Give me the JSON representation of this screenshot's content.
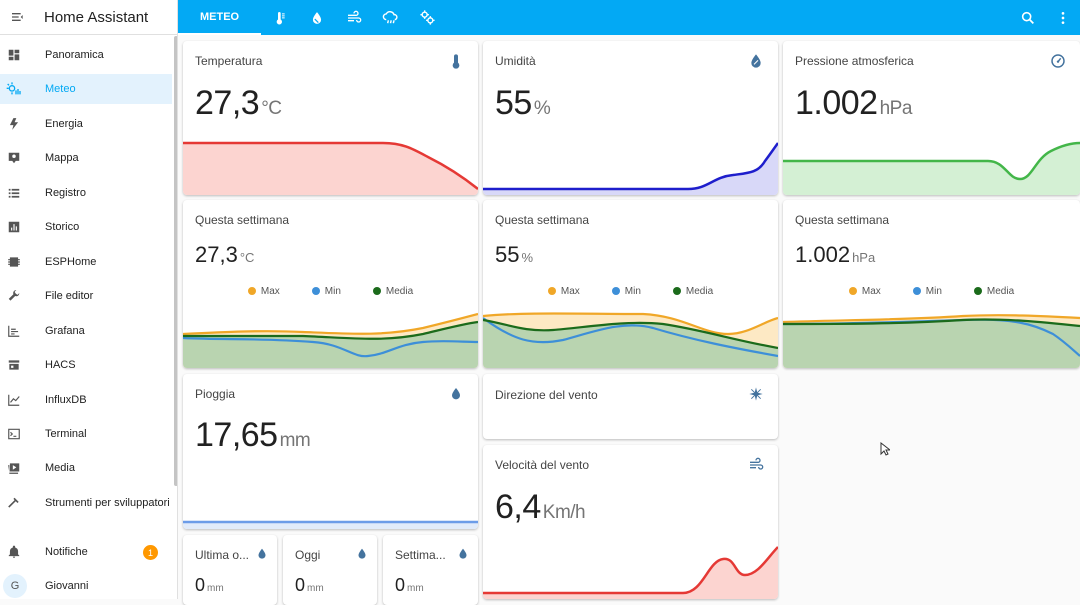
{
  "app": {
    "title": "Home Assistant"
  },
  "sidebar": {
    "items": [
      {
        "label": "Panoramica",
        "icon": "dashboard-icon"
      },
      {
        "label": "Meteo",
        "icon": "weather-icon"
      },
      {
        "label": "Energia",
        "icon": "lightning-icon"
      },
      {
        "label": "Mappa",
        "icon": "map-icon"
      },
      {
        "label": "Registro",
        "icon": "list-icon"
      },
      {
        "label": "Storico",
        "icon": "chart-icon"
      },
      {
        "label": "ESPHome",
        "icon": "chip-icon"
      },
      {
        "label": "File editor",
        "icon": "wrench-icon"
      },
      {
        "label": "Grafana",
        "icon": "grafana-icon"
      },
      {
        "label": "HACS",
        "icon": "store-icon"
      },
      {
        "label": "InfluxDB",
        "icon": "line-chart-icon"
      },
      {
        "label": "Terminal",
        "icon": "terminal-icon"
      },
      {
        "label": "Media",
        "icon": "media-icon"
      },
      {
        "label": "Strumenti per sviluppatori",
        "icon": "hammer-icon"
      }
    ],
    "notifications": {
      "label": "Notifiche",
      "count": "1"
    },
    "user": {
      "name": "Giovanni",
      "initial": "G"
    }
  },
  "topbar": {
    "tabs": [
      {
        "label": "METEO"
      },
      {
        "icon": "thermometer-icon"
      },
      {
        "icon": "water-icon"
      },
      {
        "icon": "wind-icon"
      },
      {
        "icon": "rain-cloud-icon"
      },
      {
        "icon": "gears-icon"
      }
    ],
    "actions": [
      "search-icon",
      "more-icon"
    ]
  },
  "cards": {
    "temperatura": {
      "title": "Temperatura",
      "value": "27,3",
      "unit": "°C",
      "color": "#e53935",
      "fill": "#fcd4d0"
    },
    "umidita": {
      "title": "Umidità",
      "value": "55",
      "unit": "%",
      "color": "#1e1ecc",
      "fill": "#d8d8f8"
    },
    "pressione": {
      "title": "Pressione atmosferica",
      "value": "1.002",
      "unit": "hPa",
      "color": "#43b649",
      "fill": "#d4f0d4"
    },
    "week_temp": {
      "title": "Questa settimana",
      "value": "27,3",
      "unit": "°C"
    },
    "week_hum": {
      "title": "Questa settimana",
      "value": "55",
      "unit": "%"
    },
    "week_press": {
      "title": "Questa settimana",
      "value": "1.002",
      "unit": "hPa"
    },
    "legend": {
      "max": "Max",
      "min": "Min",
      "media": "Media",
      "max_color": "#f0a728",
      "min_color": "#3d8fd8",
      "media_color": "#1b6b1b"
    },
    "pioggia": {
      "title": "Pioggia",
      "value": "17,65",
      "unit": "mm",
      "color": "#6c9ce8"
    },
    "direzione": {
      "title": "Direzione del vento"
    },
    "velocita": {
      "title": "Velocità del vento",
      "value": "6,4",
      "unit": "Km/h",
      "color": "#e53935",
      "fill": "#fcd4d0"
    },
    "ultima": {
      "title": "Ultima o...",
      "value": "0",
      "unit": "mm"
    },
    "oggi": {
      "title": "Oggi",
      "value": "0",
      "unit": "mm"
    },
    "settimana": {
      "title": "Settima...",
      "value": "0",
      "unit": "mm"
    }
  },
  "colors": {
    "primary": "#03a9f4",
    "icon": "#44739e",
    "badge": "#ff9800"
  }
}
